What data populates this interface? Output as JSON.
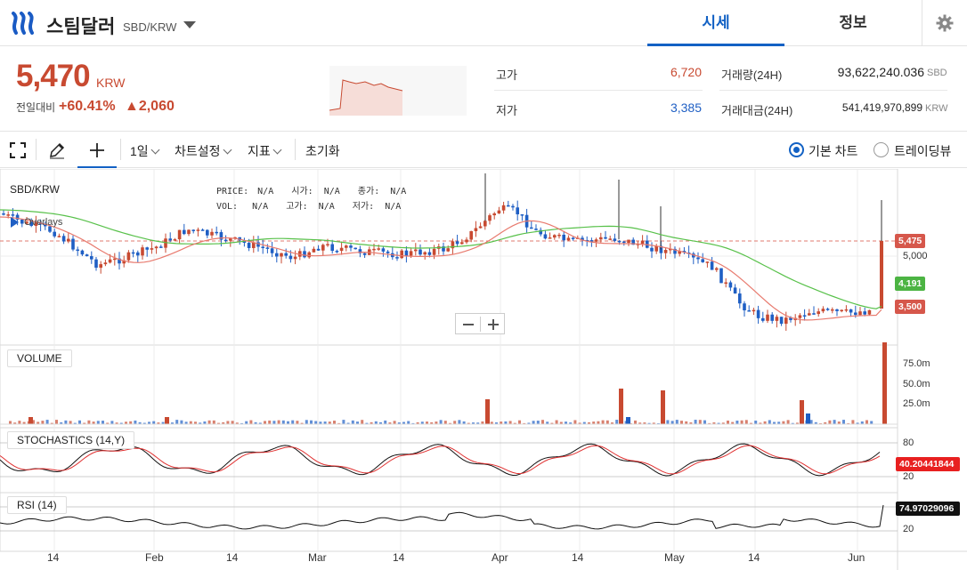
{
  "header": {
    "coin_name": "스팀달러",
    "pair": "SBD/KRW",
    "tabs": [
      "시세",
      "정보"
    ]
  },
  "summary": {
    "price": "5,470",
    "unit": "KRW",
    "change_label": "전일대비",
    "change_pct": "+60.41%",
    "change_abs": "▲2,060",
    "high_label": "고가",
    "high": "6,720",
    "low_label": "저가",
    "low": "3,385",
    "volume_label": "거래량(24H)",
    "volume": "93,622,240.036",
    "volume_unit": "SBD",
    "amount_label": "거래대금(24H)",
    "amount": "541,419,970,899",
    "amount_unit": "KRW"
  },
  "toolbar": {
    "interval": "1일",
    "chart_settings": "차트설정",
    "indicators": "지표",
    "reset": "초기화",
    "basic_chart": "기본 차트",
    "tradingview": "트레이딩뷰"
  },
  "chart": {
    "symbol": "SBD/KRW",
    "overlays": "Overlays",
    "ohlc": {
      "price_label": "PRICE:",
      "price": "N/A",
      "open_label": "시가:",
      "open": "N/A",
      "close_label": "종가:",
      "close": "N/A",
      "vol_label": "VOL:",
      "vol": "N/A",
      "high_label": "고가:",
      "high": "N/A",
      "low_label": "저가:",
      "low": "N/A"
    },
    "price_badges": {
      "last": "5,475",
      "ma_long": "4,191",
      "ma_short": "3,500"
    },
    "price_axis": "5,000",
    "volume_label": "VOLUME",
    "volume_axis": [
      "75.0m",
      "50.0m",
      "25.0m"
    ],
    "stoch_label": "STOCHASTICS (14,Y)",
    "stoch_axis": [
      "80",
      "20"
    ],
    "stoch_badge": "40.20441844",
    "rsi_label": "RSI (14)",
    "rsi_axis": "20",
    "rsi_badge": "74.97029096",
    "x_labels": [
      "14",
      "Feb",
      "14",
      "Mar",
      "14",
      "Apr",
      "14",
      "May",
      "14",
      "Jun"
    ],
    "colors": {
      "up": "#c84a31",
      "down": "#1f5fc4",
      "ma_short": "#e87a6e",
      "ma_long": "#58c14a"
    }
  }
}
